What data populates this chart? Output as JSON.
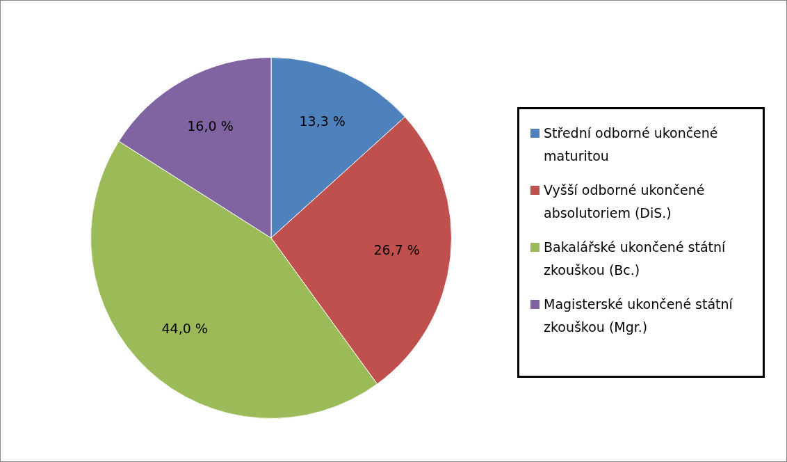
{
  "chart_data": {
    "type": "pie",
    "categories": [
      "Střední odborné ukončené maturitou",
      "Vyšší odborné ukončené absolutoriem (DiS.)",
      "Bakalářské ukončené státní zkouškou (Bc.)",
      "Magisterské ukončené státní zkouškou (Mgr.)"
    ],
    "values": [
      13.3,
      26.7,
      44.0,
      16.0
    ],
    "colors": [
      "#4f81bd",
      "#c0504d",
      "#9bbb59",
      "#8064a2"
    ],
    "value_labels": [
      "13,3 %",
      "26,7 %",
      "44,0 %",
      "16,0 %"
    ],
    "legend": "right"
  }
}
